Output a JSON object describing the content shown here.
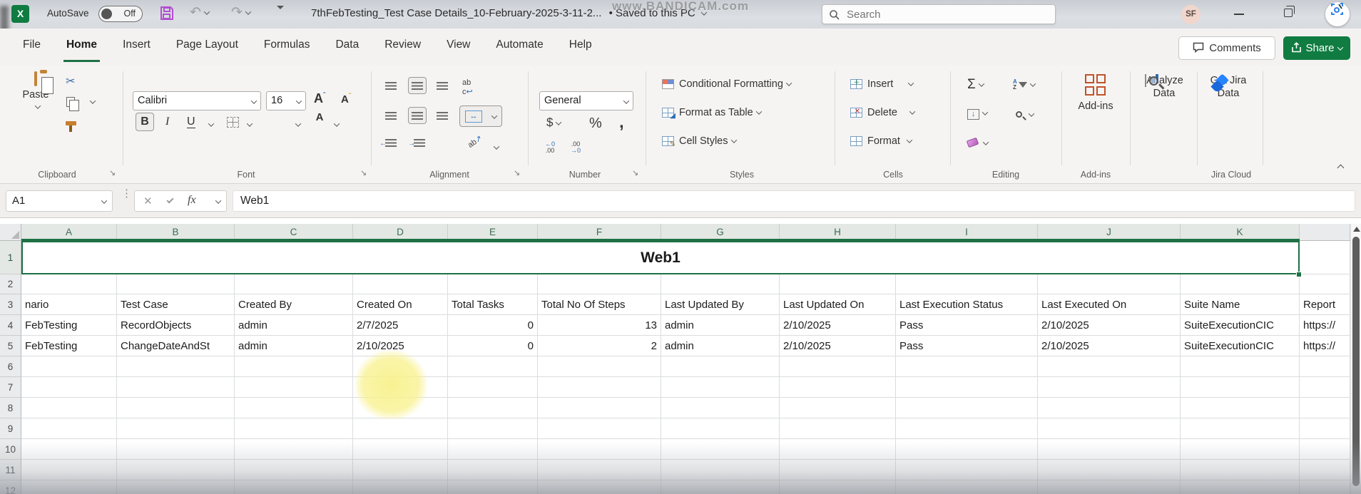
{
  "titlebar": {
    "autosave_label": "AutoSave",
    "autosave_state": "Off",
    "filename": "7thFebTesting_Test Case Details_10-February-2025-3-11-2...",
    "saved_status": "• Saved to this PC",
    "search_placeholder": "Search",
    "user_initials": "SF",
    "watermark": "www.BANDICAM.com"
  },
  "tabs": {
    "items": [
      {
        "label": "File",
        "active": false
      },
      {
        "label": "Home",
        "active": true
      },
      {
        "label": "Insert",
        "active": false
      },
      {
        "label": "Page Layout",
        "active": false
      },
      {
        "label": "Formulas",
        "active": false
      },
      {
        "label": "Data",
        "active": false
      },
      {
        "label": "Review",
        "active": false
      },
      {
        "label": "View",
        "active": false
      },
      {
        "label": "Automate",
        "active": false
      },
      {
        "label": "Help",
        "active": false
      }
    ],
    "comments_label": "Comments",
    "share_label": "Share"
  },
  "ribbon": {
    "paste_label": "Paste",
    "clipboard_group": "Clipboard",
    "font_name": "Calibri",
    "font_size": "16",
    "bold": "B",
    "italic": "I",
    "underline": "U",
    "grow_font": "A",
    "shrink_font": "A",
    "font_color_letter": "A",
    "font_group": "Font",
    "merge_arrows": "↔",
    "wrap_ab": "ab",
    "wrap_c": "c",
    "orientation_ab": "ab",
    "alignment_group": "Alignment",
    "number_format": "General",
    "currency": "$",
    "percent": "%",
    "comma": ",",
    "dec_left_top": "←0",
    "dec_left_bot": ".00",
    "dec_right_top": ".00",
    "dec_right_bot": "→0",
    "number_group": "Number",
    "conditional_formatting": "Conditional Formatting",
    "format_as_table": "Format as Table",
    "cell_styles": "Cell Styles",
    "styles_group": "Styles",
    "insert_label": "Insert",
    "delete_label": "Delete",
    "format_label": "Format",
    "cells_group": "Cells",
    "autosum": "Σ",
    "sort_a": "A",
    "sort_z": "Z",
    "editing_group": "Editing",
    "addins_button": "Add-ins",
    "addins_group": "Add-ins",
    "analyze_line1": "Analyze",
    "analyze_line2": "Data",
    "jira_line1": "Get Jira",
    "jira_line2": "Data",
    "jira_group": "Jira Cloud"
  },
  "formula_bar": {
    "name_box": "A1",
    "fx_label": "fx",
    "content": "Web1"
  },
  "sheet": {
    "column_letters": [
      "A",
      "B",
      "C",
      "D",
      "E",
      "F",
      "G",
      "H",
      "I",
      "J",
      "K",
      ""
    ],
    "row_numbers": [
      "1",
      "2",
      "3",
      "4",
      "5",
      "6",
      "7",
      "8",
      "9",
      "10",
      "11",
      "12"
    ],
    "merged_title": "Web1",
    "header_row": [
      "nario",
      "Test Case",
      "Created By",
      "Created On",
      "Total Tasks",
      "Total No Of Steps",
      "Last Updated By",
      "Last Updated On",
      "Last Execution Status",
      "Last Executed On",
      "Suite Name",
      "Report"
    ],
    "data_rows": [
      [
        "FebTesting",
        "RecordObjects",
        "admin",
        "2/7/2025",
        "0",
        "13",
        "admin",
        "2/10/2025",
        "Pass",
        "2/10/2025",
        "SuiteExecutionCIC",
        "https://"
      ],
      [
        "FebTesting",
        "ChangeDateAndSt",
        "admin",
        "2/10/2025",
        "0",
        "2",
        "admin",
        "2/10/2025",
        "Pass",
        "2/10/2025",
        "SuiteExecutionCIC",
        "https://"
      ]
    ],
    "right_aligned_columns": [
      4,
      5
    ]
  },
  "colors": {
    "excel_green": "#107c41",
    "selection_green": "#1e7145",
    "highlight_yellow": "#f8f18c"
  }
}
